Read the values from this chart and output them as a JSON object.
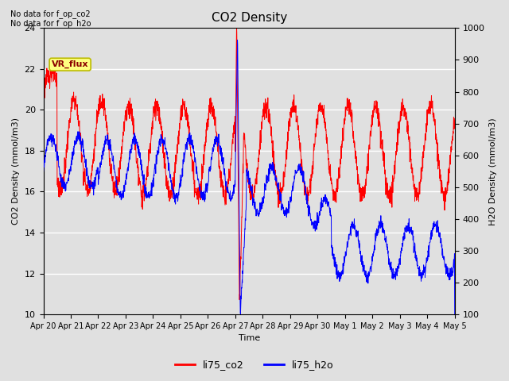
{
  "title": "CO2 Density",
  "xlabel": "Time",
  "ylabel_left": "CO2 Density (mmol/m3)",
  "ylabel_right": "H2O Density (mmol/m3)",
  "ylim_left": [
    10,
    24
  ],
  "ylim_right": [
    100,
    1000
  ],
  "yticks_left": [
    10,
    12,
    14,
    16,
    18,
    20,
    22,
    24
  ],
  "yticks_right": [
    100,
    200,
    300,
    400,
    500,
    600,
    700,
    800,
    900,
    1000
  ],
  "xticklabels": [
    "Apr 20",
    "Apr 21",
    "Apr 22",
    "Apr 23",
    "Apr 24",
    "Apr 25",
    "Apr 26",
    "Apr 27",
    "Apr 28",
    "Apr 29",
    "Apr 30",
    "May 1",
    "May 2",
    "May 3",
    "May 4",
    "May 5"
  ],
  "note1": "No data for f_op_co2",
  "note2": "No data for f_op_h2o",
  "vr_flux_label": "VR_flux",
  "legend_labels": [
    "li75_co2",
    "li75_h2o"
  ],
  "line_colors": [
    "red",
    "blue"
  ],
  "bg_color": "#e0e0e0",
  "grid_color": "white",
  "vr_box_color": "#ffff80",
  "vr_text_color": "#8b0000"
}
